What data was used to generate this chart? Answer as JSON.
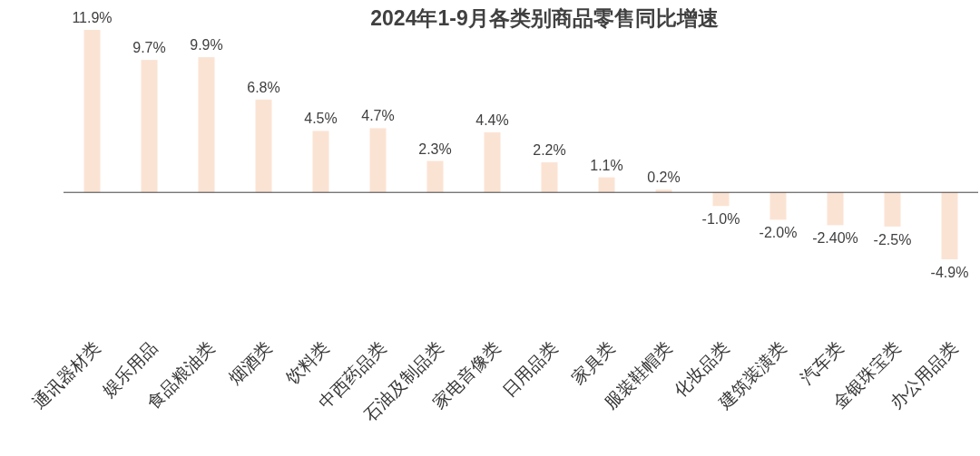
{
  "chart_data": {
    "type": "bar",
    "title": "2024年1-9月各类别商品零售同比增速",
    "categories": [
      "通讯器材类",
      "娱乐用品",
      "食品粮油类",
      "烟酒类",
      "饮料类",
      "中西药品类",
      "石油及制品类",
      "家电音像类",
      "日用品类",
      "家具类",
      "服装鞋帽类",
      "化妆品类",
      "建筑装潢类",
      "汽车类",
      "金银珠宝类",
      "办公用品类"
    ],
    "values": [
      11.9,
      9.7,
      9.9,
      6.8,
      4.5,
      4.7,
      2.3,
      4.4,
      2.2,
      1.1,
      0.2,
      -1.0,
      -2.0,
      -2.4,
      -2.5,
      -4.9
    ],
    "value_labels": [
      "11.9%",
      "9.7%",
      "9.9%",
      "6.8%",
      "4.5%",
      "4.7%",
      "2.3%",
      "4.4%",
      "2.2%",
      "1.1%",
      "0.2%",
      "-1.0%",
      "-2.0%",
      "-2.40%",
      "-2.5%",
      "-4.9%"
    ],
    "color": "#fbe3d3"
  }
}
